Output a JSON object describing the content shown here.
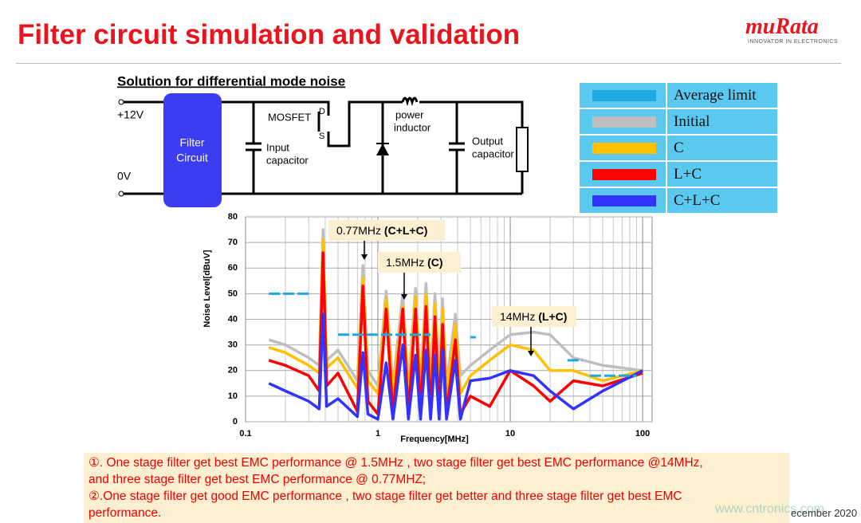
{
  "header": {
    "title": "Filter circuit simulation and validation",
    "logo": "muRata",
    "tagline": "INNOVATOR IN ELECTRONICS"
  },
  "circuit": {
    "subtitle": "Solution for  differential mode noise",
    "vin": "+12V",
    "gnd": "0V",
    "filter_line1": "Filter",
    "filter_line2": "Circuit",
    "mosfet": "MOSFET",
    "drain": "D",
    "source": "S",
    "input_cap_line1": "Input",
    "input_cap_line2": "capacitor",
    "inductor_line1": "power",
    "inductor_line2": "inductor",
    "output_cap_line1": "Output",
    "output_cap_line2": "capacitor"
  },
  "chart_data": {
    "type": "line",
    "x_label": "Frequency[MHz]",
    "y_label": "Noise Level[dBuV]",
    "log_x": true,
    "grid": true,
    "xlim": [
      0.1,
      118
    ],
    "ylim": [
      0,
      80
    ],
    "xticks": [
      0.1,
      1,
      10,
      100
    ],
    "xminorticks": [
      0.2,
      0.3,
      0.4,
      0.5,
      0.6,
      0.7,
      0.8,
      0.9,
      2,
      3,
      4,
      5,
      6,
      7,
      8,
      9,
      20,
      30,
      40,
      50,
      60,
      70,
      80,
      90
    ],
    "yticks": [
      0,
      10,
      20,
      30,
      40,
      50,
      60,
      70,
      80
    ],
    "x": [
      0.15,
      0.2,
      0.3,
      0.36,
      0.385,
      0.41,
      0.5,
      0.7,
      0.77,
      0.84,
      1.0,
      1.155,
      1.3,
      1.54,
      1.7,
      1.925,
      2.1,
      2.31,
      2.5,
      2.7,
      2.9,
      3.08,
      3.3,
      3.85,
      4.2,
      5,
      7,
      10,
      15,
      20,
      30,
      50,
      100
    ],
    "series": [
      {
        "name": "Average limit",
        "color": "#1ea7e0",
        "x": [
          0.15,
          0.3,
          null,
          0.5,
          2.5,
          null,
          5,
          5.5,
          null,
          27,
          35,
          null,
          40,
          90
        ],
        "values": [
          50,
          50,
          null,
          34,
          34,
          null,
          33,
          33,
          null,
          24,
          24,
          null,
          18,
          18
        ]
      },
      {
        "name": "Initial",
        "color": "#bfbfbf",
        "values": [
          32,
          30,
          25,
          22,
          75,
          24,
          28,
          16,
          61,
          20,
          14,
          51,
          14,
          50,
          14,
          52,
          14,
          54,
          15,
          50,
          15,
          48,
          15,
          42,
          18,
          22,
          28,
          34,
          35,
          34,
          25,
          22,
          20
        ]
      },
      {
        "name": "C",
        "color": "#ffc000",
        "values": [
          29,
          27,
          22,
          19,
          71,
          21,
          25,
          13,
          56,
          16,
          11,
          48,
          11,
          45,
          11,
          49,
          11,
          50,
          11,
          46,
          11,
          44,
          11,
          38,
          11,
          18,
          24,
          30,
          28,
          20,
          20,
          16,
          20
        ]
      },
      {
        "name": "L+C",
        "color": "#ff0000",
        "values": [
          24,
          22,
          18,
          12,
          66,
          14,
          19,
          4,
          53,
          8,
          3,
          44,
          3,
          44,
          3,
          44,
          3,
          45,
          3,
          41,
          3,
          38,
          3,
          32,
          3,
          10,
          6,
          20,
          14,
          8,
          16,
          14,
          19
        ]
      },
      {
        "name": "C+L+C",
        "color": "#3333ff",
        "values": [
          15,
          12,
          8,
          5,
          42,
          6,
          9,
          2,
          27,
          3,
          1,
          23,
          1,
          30,
          1,
          26,
          1,
          28,
          1,
          26,
          1,
          28,
          1,
          24,
          1,
          16,
          17,
          20,
          18,
          12,
          5,
          12,
          20
        ]
      }
    ],
    "annotations": [
      {
        "text": "0.77MHz",
        "detail": "(C+L+C)"
      },
      {
        "text": "1.5MHz",
        "detail": "(C)"
      },
      {
        "text": "14MHz",
        "detail": "(L+C)"
      }
    ]
  },
  "notes": {
    "line1": "①. One stage filter get best EMC performance @ 1.5MHz , two stage filter get best EMC performance @14MHz,",
    "line2": "and three stage filter get best EMC performance @ 0.77MHZ;",
    "line3": "②.One stage filter get good EMC performance , two stage filter get better and three stage filter get best EMC",
    "line4": "performance."
  },
  "footer": {
    "date": "ecember 2020",
    "watermark": "www.cntronics.com"
  }
}
